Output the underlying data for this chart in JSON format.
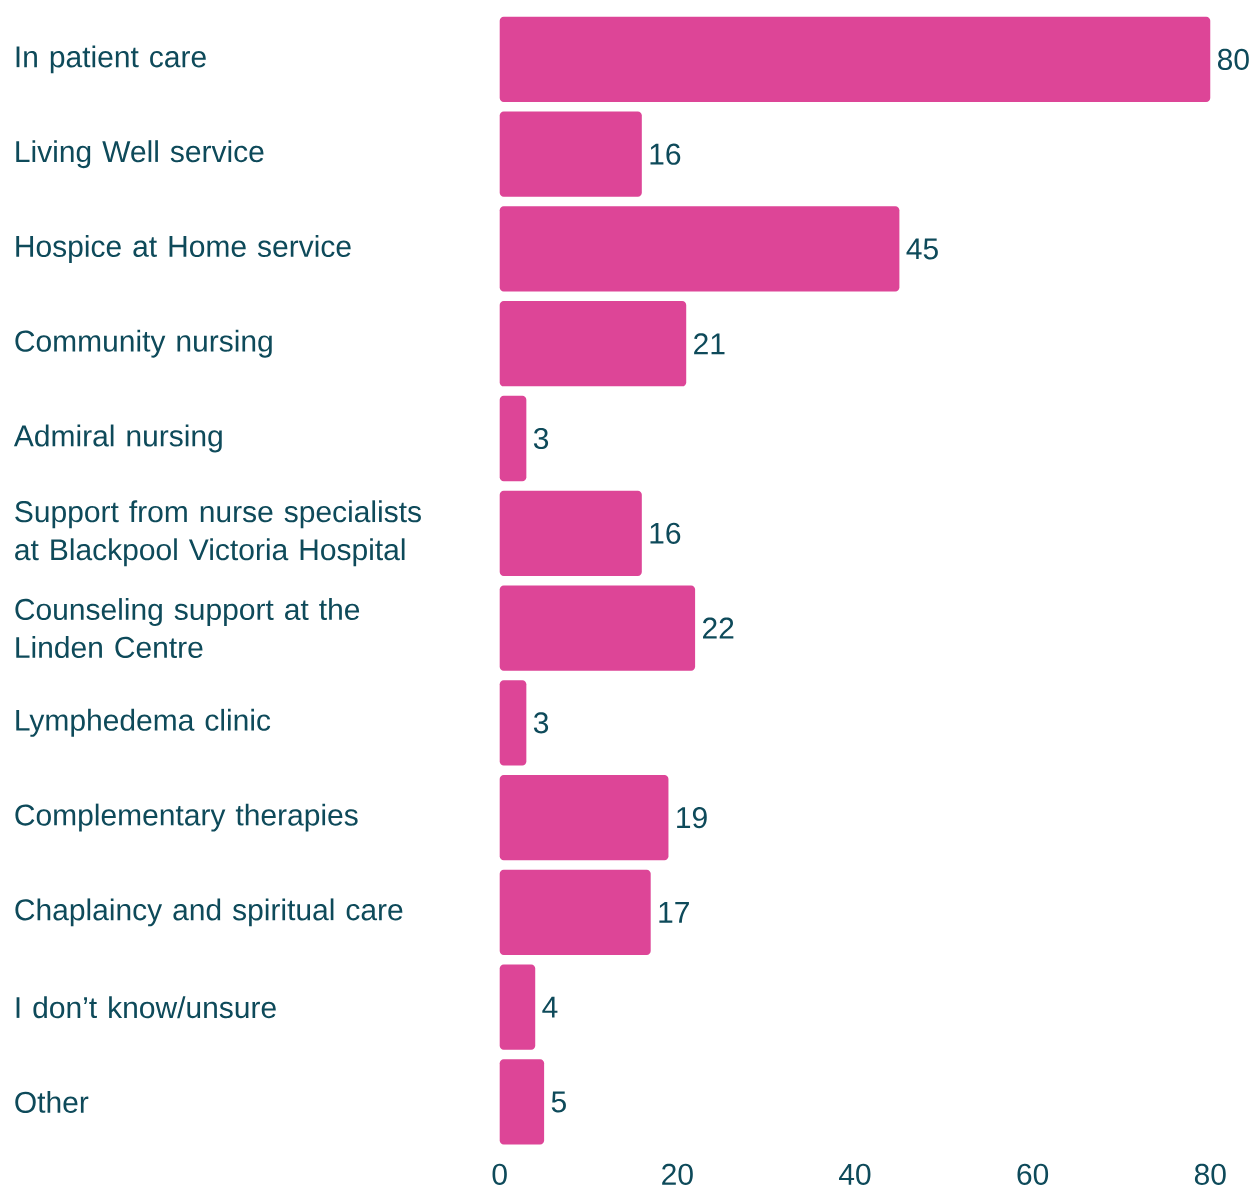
{
  "chart_data": {
    "type": "bar",
    "orientation": "horizontal",
    "categories": [
      "In patient care",
      "Living Well service",
      "Hospice at Home service",
      "Community nursing",
      "Admiral nursing",
      "Support from nurse specialists at Blackpool Victoria Hospital",
      "Counseling support at the Linden Centre",
      "Lymphedema clinic",
      "Complementary therapies",
      "Chaplaincy and spiritual care",
      "I don’t know/unsure",
      "Other"
    ],
    "values": [
      80,
      16,
      45,
      21,
      3,
      16,
      22,
      3,
      19,
      17,
      4,
      5
    ],
    "color": "#dd4597",
    "xlim": [
      0,
      80
    ],
    "xticks": [
      0,
      20,
      40,
      60,
      80
    ],
    "data_labels": true,
    "grid": false
  }
}
